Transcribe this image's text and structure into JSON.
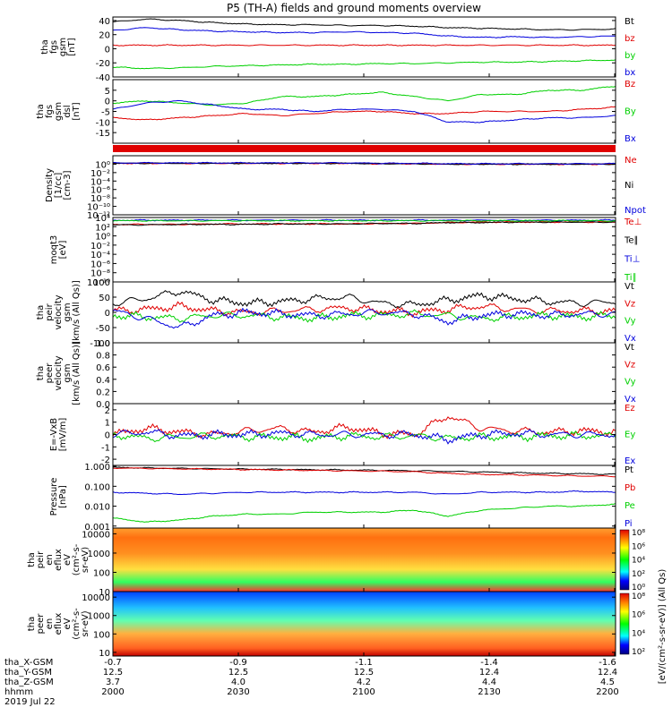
{
  "title": "P5 (TH-A) fields and ground moments overview",
  "colors": {
    "black": "#000000",
    "red": "#e00000",
    "green": "#00d000",
    "blue": "#0000dd"
  },
  "chart_data": [
    {
      "id": "p1",
      "type": "line",
      "ylabel": [
        "tha",
        "fgs",
        "gsm",
        "[nT]"
      ],
      "ylim": [
        -40,
        45
      ],
      "yticks": [
        "40",
        "20",
        "0",
        "-20",
        "-40"
      ],
      "ytick_values": [
        40,
        20,
        0,
        -20,
        -40
      ],
      "log": false,
      "series": [
        {
          "name": "Bt",
          "color": "black",
          "values": [
            38,
            42,
            40,
            37,
            35,
            34,
            34,
            33,
            33,
            32,
            30,
            29,
            28,
            27,
            27,
            28
          ]
        },
        {
          "name": "bz",
          "color": "red",
          "values": [
            5,
            5,
            5,
            5,
            5,
            5,
            5,
            5,
            5,
            5,
            5,
            5,
            5,
            5,
            5,
            5
          ]
        },
        {
          "name": "by",
          "color": "green",
          "values": [
            -26,
            -28,
            -27,
            -25,
            -24,
            -23,
            -22,
            -22,
            -21,
            -21,
            -20,
            -19,
            -19,
            -18,
            -17,
            -16
          ]
        },
        {
          "name": "bx",
          "color": "blue",
          "values": [
            26,
            30,
            27,
            25,
            24,
            23,
            23,
            24,
            23,
            22,
            18,
            16,
            17,
            16,
            17,
            18
          ]
        }
      ]
    },
    {
      "id": "p2",
      "type": "line",
      "ylabel": [
        "tha",
        "fgs",
        "gsm",
        "dsl",
        "[nT]"
      ],
      "ylim": [
        -20,
        10
      ],
      "yticks": [
        "5",
        "0",
        "-5",
        "-10",
        "-15"
      ],
      "ytick_values": [
        5,
        0,
        -5,
        -10,
        -15
      ],
      "log": false,
      "series": [
        {
          "name": "Bz",
          "color": "red",
          "values": [
            -8,
            -9,
            -8,
            -7,
            -6,
            -7,
            -6,
            -5,
            -5,
            -6,
            -6,
            -5,
            -5,
            -5,
            -4,
            -3
          ]
        },
        {
          "name": "By",
          "color": "green",
          "values": [
            -1,
            0,
            -1,
            -2,
            -1,
            2,
            2,
            3,
            4,
            2,
            0,
            3,
            3,
            5,
            5,
            7
          ]
        },
        {
          "name": "Bx",
          "color": "blue",
          "values": [
            -4,
            -1,
            0,
            -2,
            -4,
            -4,
            -5,
            -4,
            -4,
            -5,
            -10,
            -10,
            -9,
            -8,
            -8,
            -7
          ]
        }
      ]
    },
    {
      "id": "p3",
      "type": "line",
      "ylabel": [
        "Density",
        "[1/cc]",
        "[cm-3]"
      ],
      "ylim": [
        -12,
        2
      ],
      "yticks": [
        "10⁰",
        "10⁻²",
        "10⁻⁴",
        "10⁻⁶",
        "10⁻⁸",
        "10⁻¹⁰",
        "10⁻¹²"
      ],
      "ytick_values": [
        0,
        -2,
        -4,
        -6,
        -8,
        -10,
        -12
      ],
      "log": true,
      "series": [
        {
          "name": "Ne",
          "color": "red",
          "values": [
            0.2,
            0.2,
            0.2,
            0.2,
            0.2,
            0.2,
            0.2,
            0.2,
            0.1,
            0.1,
            0,
            0,
            0,
            0,
            0,
            0
          ]
        },
        {
          "name": "Ni",
          "color": "black",
          "values": [
            0.2,
            0.2,
            0.2,
            0.2,
            0.2,
            0.2,
            0.2,
            0.2,
            0.1,
            0.1,
            0,
            0,
            0,
            0,
            0,
            0
          ]
        },
        {
          "name": "Npot",
          "color": "blue",
          "values": [
            0.3,
            0.3,
            0.3,
            0.3,
            0.3,
            0.3,
            0.3,
            0.3,
            0.2,
            0.2,
            0.1,
            0.1,
            0.1,
            0.1,
            0.1,
            0.1
          ]
        }
      ]
    },
    {
      "id": "p4",
      "type": "line",
      "ylabel": [
        "moqt3",
        "[eV]"
      ],
      "ylim": [
        -10,
        4
      ],
      "yticks": [
        "10⁴",
        "10²",
        "10⁰",
        "10⁻²",
        "10⁻⁴",
        "10⁻⁶",
        "10⁻⁸",
        "10⁻¹⁰"
      ],
      "ytick_values": [
        4,
        2,
        0,
        -2,
        -4,
        -6,
        -8,
        -10
      ],
      "log": true,
      "series": [
        {
          "name": "Te⊥",
          "color": "red",
          "values": [
            2.5,
            2.5,
            2.5,
            2.6,
            2.6,
            2.6,
            2.6,
            2.6,
            2.7,
            2.7,
            2.9,
            3.0,
            3.0,
            3.0,
            3.0,
            3.0
          ]
        },
        {
          "name": "Te∥",
          "color": "black",
          "values": [
            2.4,
            2.4,
            2.5,
            2.5,
            2.5,
            2.6,
            2.6,
            2.6,
            2.7,
            2.7,
            2.9,
            2.9,
            3.0,
            3.0,
            3.0,
            3.0
          ]
        },
        {
          "name": "Ti⊥",
          "color": "blue",
          "values": [
            3.4,
            3.4,
            3.4,
            3.4,
            3.4,
            3.4,
            3.4,
            3.4,
            3.4,
            3.4,
            3.4,
            3.4,
            3.4,
            3.4,
            3.4,
            3.4
          ]
        },
        {
          "name": "Ti∥",
          "color": "green",
          "values": [
            3.3,
            3.3,
            3.3,
            3.3,
            3.3,
            3.3,
            3.3,
            3.3,
            3.3,
            3.3,
            3.3,
            3.3,
            3.3,
            3.3,
            3.3,
            3.3
          ]
        }
      ]
    },
    {
      "id": "p5",
      "type": "line",
      "ylabel": [
        "tha",
        "peir",
        "velocity",
        "gsm",
        "[km/s (All Qs)]"
      ],
      "ylim": [
        -100,
        100
      ],
      "yticks": [
        "100",
        "50",
        "0",
        "-50",
        "-100"
      ],
      "ytick_values": [
        100,
        50,
        0,
        -50,
        -100
      ],
      "log": false,
      "series": [
        {
          "name": "Vt",
          "color": "black",
          "values": [
            30,
            45,
            70,
            40,
            30,
            35,
            45,
            50,
            30,
            25,
            40,
            55,
            45,
            35,
            30,
            35
          ]
        },
        {
          "name": "Vz",
          "color": "red",
          "values": [
            5,
            10,
            20,
            5,
            0,
            5,
            10,
            15,
            5,
            0,
            10,
            20,
            10,
            5,
            5,
            5
          ]
        },
        {
          "name": "Vy",
          "color": "green",
          "values": [
            -10,
            -15,
            -20,
            -10,
            -10,
            -15,
            -20,
            -10,
            -10,
            -5,
            -10,
            -20,
            -15,
            -10,
            -15,
            -10
          ]
        },
        {
          "name": "Vx",
          "color": "blue",
          "values": [
            5,
            -20,
            -50,
            -10,
            0,
            -5,
            -10,
            -5,
            0,
            -5,
            -30,
            -10,
            -5,
            -10,
            -5,
            -5
          ]
        }
      ]
    },
    {
      "id": "p6",
      "type": "line",
      "ylabel": [
        "tha",
        "peer",
        "velocity",
        "gsm",
        "[km/s (All Qs)]"
      ],
      "ylim": [
        0,
        1
      ],
      "yticks": [
        "1.0",
        "0.8",
        "0.6",
        "0.4",
        "0.2",
        "0.0"
      ],
      "ytick_values": [
        1,
        0.8,
        0.6,
        0.4,
        0.2,
        0
      ],
      "log": false,
      "series": [
        {
          "name": "Vt",
          "color": "black",
          "values": []
        },
        {
          "name": "Vz",
          "color": "red",
          "values": []
        },
        {
          "name": "Vy",
          "color": "green",
          "values": []
        },
        {
          "name": "Vx",
          "color": "blue",
          "values": []
        }
      ]
    },
    {
      "id": "p7",
      "type": "line",
      "ylabel": [
        "E=-VxB",
        "[mV/m]"
      ],
      "ylim": [
        -2.5,
        2.5
      ],
      "yticks": [
        "2",
        "1",
        "0",
        "-1",
        "-2"
      ],
      "ytick_values": [
        2,
        1,
        0,
        -1,
        -2
      ],
      "log": false,
      "series": [
        {
          "name": "Ez",
          "color": "red",
          "values": [
            0,
            0.5,
            0.2,
            0,
            0.3,
            0.5,
            0.2,
            0.6,
            0.1,
            0,
            1.5,
            0.5,
            0.3,
            0.2,
            0.3,
            0.2
          ]
        },
        {
          "name": "Ey",
          "color": "green",
          "values": [
            0,
            -0.3,
            -0.2,
            -0.1,
            -0.2,
            -0.2,
            -0.3,
            -0.1,
            -0.2,
            -0.1,
            -0.3,
            -0.2,
            -0.2,
            -0.1,
            -0.1,
            -0.1
          ]
        },
        {
          "name": "Ex",
          "color": "blue",
          "values": [
            0,
            0.2,
            -0.1,
            0,
            0,
            0.1,
            0,
            0,
            0,
            0,
            -0.4,
            0,
            0.1,
            0,
            0,
            0
          ]
        }
      ]
    },
    {
      "id": "p8",
      "type": "line",
      "ylabel": [
        "Pressure",
        "[nPa]"
      ],
      "ylim": [
        -3.1,
        0.05
      ],
      "yticks": [
        "1.000",
        "0.100",
        "0.010",
        "0.001"
      ],
      "ytick_values": [
        0,
        -1,
        -2,
        -3
      ],
      "log": true,
      "series": [
        {
          "name": "Pt",
          "color": "black",
          "values": [
            -0.05,
            -0.08,
            -0.1,
            -0.12,
            -0.14,
            -0.15,
            -0.17,
            -0.18,
            -0.2,
            -0.22,
            -0.25,
            -0.28,
            -0.32,
            -0.35,
            -0.37,
            -0.4
          ]
        },
        {
          "name": "Pb",
          "color": "red",
          "values": [
            -0.08,
            -0.1,
            -0.12,
            -0.14,
            -0.16,
            -0.18,
            -0.2,
            -0.22,
            -0.24,
            -0.27,
            -0.35,
            -0.4,
            -0.42,
            -0.45,
            -0.48,
            -0.5
          ]
        },
        {
          "name": "Pe",
          "color": "green",
          "values": [
            -2.6,
            -2.8,
            -2.7,
            -2.5,
            -2.4,
            -2.4,
            -2.3,
            -2.3,
            -2.3,
            -2.2,
            -2.5,
            -2.2,
            -2.1,
            -2.0,
            -2.0,
            -1.9
          ]
        },
        {
          "name": "Pi",
          "color": "blue",
          "values": [
            -1.3,
            -1.35,
            -1.4,
            -1.35,
            -1.3,
            -1.3,
            -1.3,
            -1.3,
            -1.3,
            -1.3,
            -1.4,
            -1.3,
            -1.3,
            -1.3,
            -1.25,
            -1.3
          ]
        }
      ]
    },
    {
      "id": "p9",
      "type": "heatmap",
      "ylabel": [
        "tha",
        "peir",
        "en",
        "eflux",
        "eV",
        "(cm²-s-",
        "sr-eV)"
      ],
      "ylim": [
        1,
        4.3
      ],
      "yticks": [
        "10000",
        "1000",
        "100",
        "10"
      ],
      "ytick_values": [
        4,
        3,
        2,
        1
      ],
      "log": true,
      "colorbar": [
        "10⁸",
        "10⁶",
        "10⁴",
        "10²",
        "10⁰"
      ]
    },
    {
      "id": "p10",
      "type": "heatmap",
      "ylabel": [
        "tha",
        "peer",
        "en",
        "eflux",
        "eV",
        "(cm²-s-",
        "sr-eV)"
      ],
      "ylim": [
        0.8,
        4.3
      ],
      "yticks": [
        "10000",
        "1000",
        "100",
        "10"
      ],
      "ytick_values": [
        4,
        3,
        2,
        1
      ],
      "log": true,
      "colorbar": [
        "10⁸",
        "10⁶",
        "10⁴",
        "10²"
      ]
    }
  ],
  "colorbar_label": "[eV/(cm²-s-sr-eV)] (All Qs)",
  "xaxis": {
    "row_labels": [
      "tha_X-GSM",
      "tha_Y-GSM",
      "tha_Z-GSM",
      "hhmm",
      "2019 Jul 22"
    ],
    "columns": [
      {
        "x": "-0.7",
        "y": "12.5",
        "z": "3.7",
        "t": "2000"
      },
      {
        "x": "-0.9",
        "y": "12.5",
        "z": "4.0",
        "t": "2030"
      },
      {
        "x": "-1.1",
        "y": "12.5",
        "z": "4.2",
        "t": "2100"
      },
      {
        "x": "-1.4",
        "y": "12.4",
        "z": "4.4",
        "t": "2130"
      },
      {
        "x": "-1.6",
        "y": "12.4",
        "z": "4.5",
        "t": "2200"
      }
    ]
  }
}
